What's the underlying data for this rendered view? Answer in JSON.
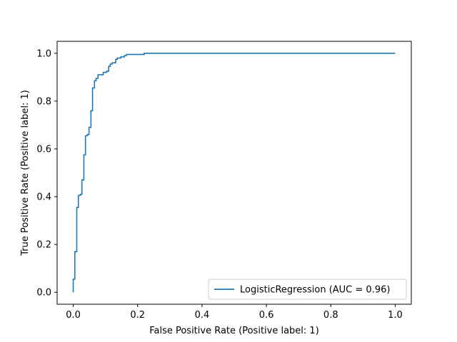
{
  "chart_data": {
    "type": "line",
    "xlabel": "False Positive Rate (Positive label: 1)",
    "ylabel": "True Positive Rate (Positive label: 1)",
    "xlim": [
      -0.05,
      1.05
    ],
    "ylim": [
      -0.05,
      1.05
    ],
    "xticks": [
      "0.0",
      "0.2",
      "0.4",
      "0.6",
      "0.8",
      "1.0"
    ],
    "yticks": [
      "0.0",
      "0.2",
      "0.4",
      "0.6",
      "0.8",
      "1.0"
    ],
    "grid": false,
    "legend": {
      "placement": "lower-right"
    },
    "series": [
      {
        "name": "LogisticRegression (AUC = 0.96)",
        "color": "#1f77b4",
        "step": true,
        "points": [
          [
            0.0,
            0.0
          ],
          [
            0.0,
            0.055
          ],
          [
            0.005,
            0.055
          ],
          [
            0.005,
            0.17
          ],
          [
            0.011,
            0.17
          ],
          [
            0.011,
            0.355
          ],
          [
            0.016,
            0.355
          ],
          [
            0.016,
            0.405
          ],
          [
            0.022,
            0.405
          ],
          [
            0.022,
            0.41
          ],
          [
            0.027,
            0.41
          ],
          [
            0.027,
            0.47
          ],
          [
            0.033,
            0.47
          ],
          [
            0.033,
            0.575
          ],
          [
            0.038,
            0.575
          ],
          [
            0.038,
            0.655
          ],
          [
            0.044,
            0.655
          ],
          [
            0.044,
            0.66
          ],
          [
            0.049,
            0.66
          ],
          [
            0.049,
            0.69
          ],
          [
            0.055,
            0.69
          ],
          [
            0.055,
            0.76
          ],
          [
            0.06,
            0.76
          ],
          [
            0.06,
            0.855
          ],
          [
            0.066,
            0.855
          ],
          [
            0.066,
            0.885
          ],
          [
            0.071,
            0.885
          ],
          [
            0.071,
            0.895
          ],
          [
            0.077,
            0.895
          ],
          [
            0.077,
            0.91
          ],
          [
            0.093,
            0.91
          ],
          [
            0.093,
            0.92
          ],
          [
            0.104,
            0.92
          ],
          [
            0.104,
            0.925
          ],
          [
            0.11,
            0.925
          ],
          [
            0.11,
            0.945
          ],
          [
            0.115,
            0.945
          ],
          [
            0.115,
            0.955
          ],
          [
            0.121,
            0.955
          ],
          [
            0.121,
            0.96
          ],
          [
            0.132,
            0.96
          ],
          [
            0.132,
            0.975
          ],
          [
            0.137,
            0.975
          ],
          [
            0.137,
            0.98
          ],
          [
            0.148,
            0.98
          ],
          [
            0.148,
            0.985
          ],
          [
            0.159,
            0.985
          ],
          [
            0.159,
            0.99
          ],
          [
            0.165,
            0.99
          ],
          [
            0.165,
            0.995
          ],
          [
            0.22,
            0.995
          ],
          [
            0.22,
            1.0
          ],
          [
            0.37,
            1.0
          ],
          [
            0.37,
            1.0
          ],
          [
            1.0,
            1.0
          ]
        ]
      }
    ]
  }
}
